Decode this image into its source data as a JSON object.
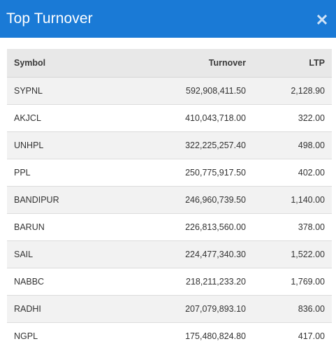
{
  "modal": {
    "title": "Top Turnover",
    "close_icon": "close-icon"
  },
  "colors": {
    "header_bg": "#1a7ad6",
    "header_text": "#ffffff",
    "table_header_bg": "#e8e8e8",
    "row_odd_bg": "#f2f2f2",
    "row_even_bg": "#ffffff"
  },
  "table": {
    "headers": {
      "symbol": "Symbol",
      "turnover": "Turnover",
      "ltp": "LTP"
    },
    "rows": [
      {
        "symbol": "SYPNL",
        "turnover": "592,908,411.50",
        "ltp": "2,128.90"
      },
      {
        "symbol": "AKJCL",
        "turnover": "410,043,718.00",
        "ltp": "322.00"
      },
      {
        "symbol": "UNHPL",
        "turnover": "322,225,257.40",
        "ltp": "498.00"
      },
      {
        "symbol": "PPL",
        "turnover": "250,775,917.50",
        "ltp": "402.00"
      },
      {
        "symbol": "BANDIPUR",
        "turnover": "246,960,739.50",
        "ltp": "1,140.00"
      },
      {
        "symbol": "BARUN",
        "turnover": "226,813,560.00",
        "ltp": "378.00"
      },
      {
        "symbol": "SAIL",
        "turnover": "224,477,340.30",
        "ltp": "1,522.00"
      },
      {
        "symbol": "NABBC",
        "turnover": "218,211,233.20",
        "ltp": "1,769.00"
      },
      {
        "symbol": "RADHI",
        "turnover": "207,079,893.10",
        "ltp": "836.00"
      },
      {
        "symbol": "NGPL",
        "turnover": "175,480,824.80",
        "ltp": "417.00"
      }
    ]
  }
}
